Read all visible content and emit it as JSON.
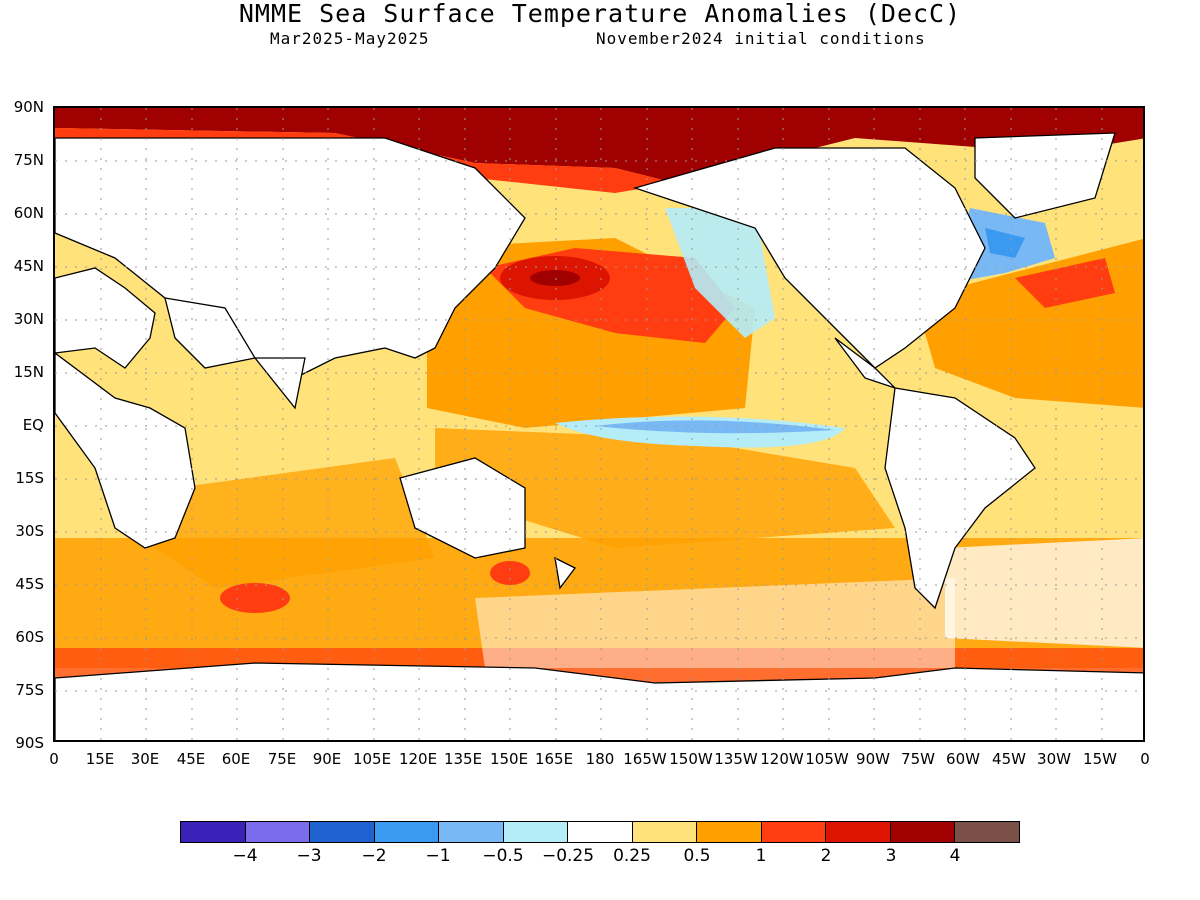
{
  "title": "NMME Sea Surface Temperature Anomalies (DecC)",
  "subtitle_left": "Mar2025-May2025",
  "subtitle_right": "November2024 initial conditions",
  "lat_labels": [
    "90N",
    "75N",
    "60N",
    "45N",
    "30N",
    "15N",
    "EQ",
    "15S",
    "30S",
    "45S",
    "60S",
    "75S",
    "90S"
  ],
  "lon_labels": [
    "0",
    "15E",
    "30E",
    "45E",
    "60E",
    "75E",
    "90E",
    "105E",
    "120E",
    "135E",
    "150E",
    "165E",
    "180",
    "165W",
    "150W",
    "135W",
    "120W",
    "105W",
    "90W",
    "75W",
    "60W",
    "45W",
    "30W",
    "15W",
    "0"
  ],
  "colorbar": {
    "colors": [
      "#3a22b8",
      "#7b6cec",
      "#1e62d0",
      "#3a9af0",
      "#78b8f5",
      "#b4ecf8",
      "#ffffff",
      "#ffe27a",
      "#ffa000",
      "#ff3d10",
      "#dd1500",
      "#a00000",
      "#7a5048"
    ],
    "labels": [
      "-4",
      "-3",
      "-2",
      "-1",
      "-0.5",
      "-0.25",
      "0.25",
      "0.5",
      "1",
      "2",
      "3",
      "4"
    ]
  }
}
